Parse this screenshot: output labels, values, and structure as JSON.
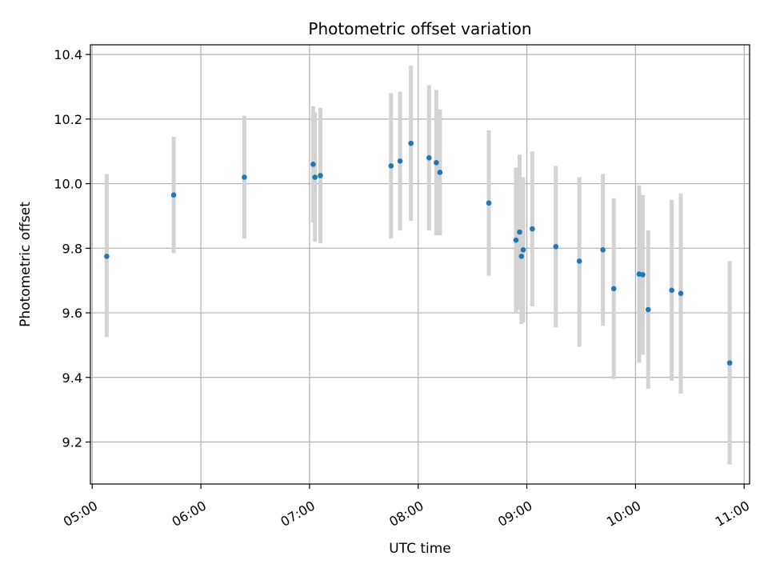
{
  "chart_data": {
    "type": "scatter",
    "title": "Photometric offset variation",
    "xlabel": "UTC time",
    "ylabel": "Photometric offset",
    "x_is_time": true,
    "xlim": [
      "04:59",
      "11:03"
    ],
    "ylim": [
      9.07,
      10.43
    ],
    "x_ticks": [
      "05:00",
      "06:00",
      "07:00",
      "08:00",
      "09:00",
      "10:00",
      "11:00"
    ],
    "y_ticks": [
      9.2,
      9.4,
      9.6,
      9.8,
      10.0,
      10.2,
      10.4
    ],
    "y_tick_labels": [
      "9.2",
      "9.4",
      "9.6",
      "9.8",
      "10.0",
      "10.2",
      "10.4"
    ],
    "grid": true,
    "x_tick_rotation": 30,
    "colors": {
      "point": "#1f77b4",
      "errorbar": "#d3d3d3",
      "grid": "#b0b0b0",
      "axis": "#000000"
    },
    "points": [
      {
        "time": "05:08",
        "value": 9.775,
        "low": 9.525,
        "high": 10.03
      },
      {
        "time": "05:45",
        "value": 9.965,
        "low": 9.785,
        "high": 10.145
      },
      {
        "time": "06:24",
        "value": 10.02,
        "low": 9.83,
        "high": 10.21
      },
      {
        "time": "07:02",
        "value": 10.06,
        "low": 9.88,
        "high": 10.24
      },
      {
        "time": "07:03",
        "value": 10.02,
        "low": 9.82,
        "high": 10.22
      },
      {
        "time": "07:06",
        "value": 10.025,
        "low": 9.815,
        "high": 10.235
      },
      {
        "time": "07:45",
        "value": 10.055,
        "low": 9.83,
        "high": 10.28
      },
      {
        "time": "07:50",
        "value": 10.07,
        "low": 9.855,
        "high": 10.285
      },
      {
        "time": "07:56",
        "value": 10.125,
        "low": 9.885,
        "high": 10.365
      },
      {
        "time": "08:06",
        "value": 10.08,
        "low": 9.855,
        "high": 10.305
      },
      {
        "time": "08:10",
        "value": 10.065,
        "low": 9.84,
        "high": 10.29
      },
      {
        "time": "08:12",
        "value": 10.035,
        "low": 9.84,
        "high": 10.23
      },
      {
        "time": "08:39",
        "value": 9.94,
        "low": 9.715,
        "high": 10.165
      },
      {
        "time": "08:54",
        "value": 9.825,
        "low": 9.6,
        "high": 10.05
      },
      {
        "time": "08:56",
        "value": 9.85,
        "low": 9.61,
        "high": 10.09
      },
      {
        "time": "08:57",
        "value": 9.775,
        "low": 9.565,
        "high": 9.985
      },
      {
        "time": "08:58",
        "value": 9.795,
        "low": 9.57,
        "high": 10.02
      },
      {
        "time": "09:03",
        "value": 9.86,
        "low": 9.62,
        "high": 10.1
      },
      {
        "time": "09:16",
        "value": 9.805,
        "low": 9.555,
        "high": 10.055
      },
      {
        "time": "09:29",
        "value": 9.76,
        "low": 9.495,
        "high": 10.02
      },
      {
        "time": "09:42",
        "value": 9.795,
        "low": 9.56,
        "high": 10.03
      },
      {
        "time": "09:48",
        "value": 9.675,
        "low": 9.395,
        "high": 9.955
      },
      {
        "time": "10:02",
        "value": 9.72,
        "low": 9.445,
        "high": 9.995
      },
      {
        "time": "10:04",
        "value": 9.718,
        "low": 9.47,
        "high": 9.965
      },
      {
        "time": "10:07",
        "value": 9.61,
        "low": 9.365,
        "high": 9.855
      },
      {
        "time": "10:20",
        "value": 9.67,
        "low": 9.39,
        "high": 9.95
      },
      {
        "time": "10:25",
        "value": 9.66,
        "low": 9.35,
        "high": 9.97
      },
      {
        "time": "10:52",
        "value": 9.445,
        "low": 9.13,
        "high": 9.76
      }
    ]
  }
}
